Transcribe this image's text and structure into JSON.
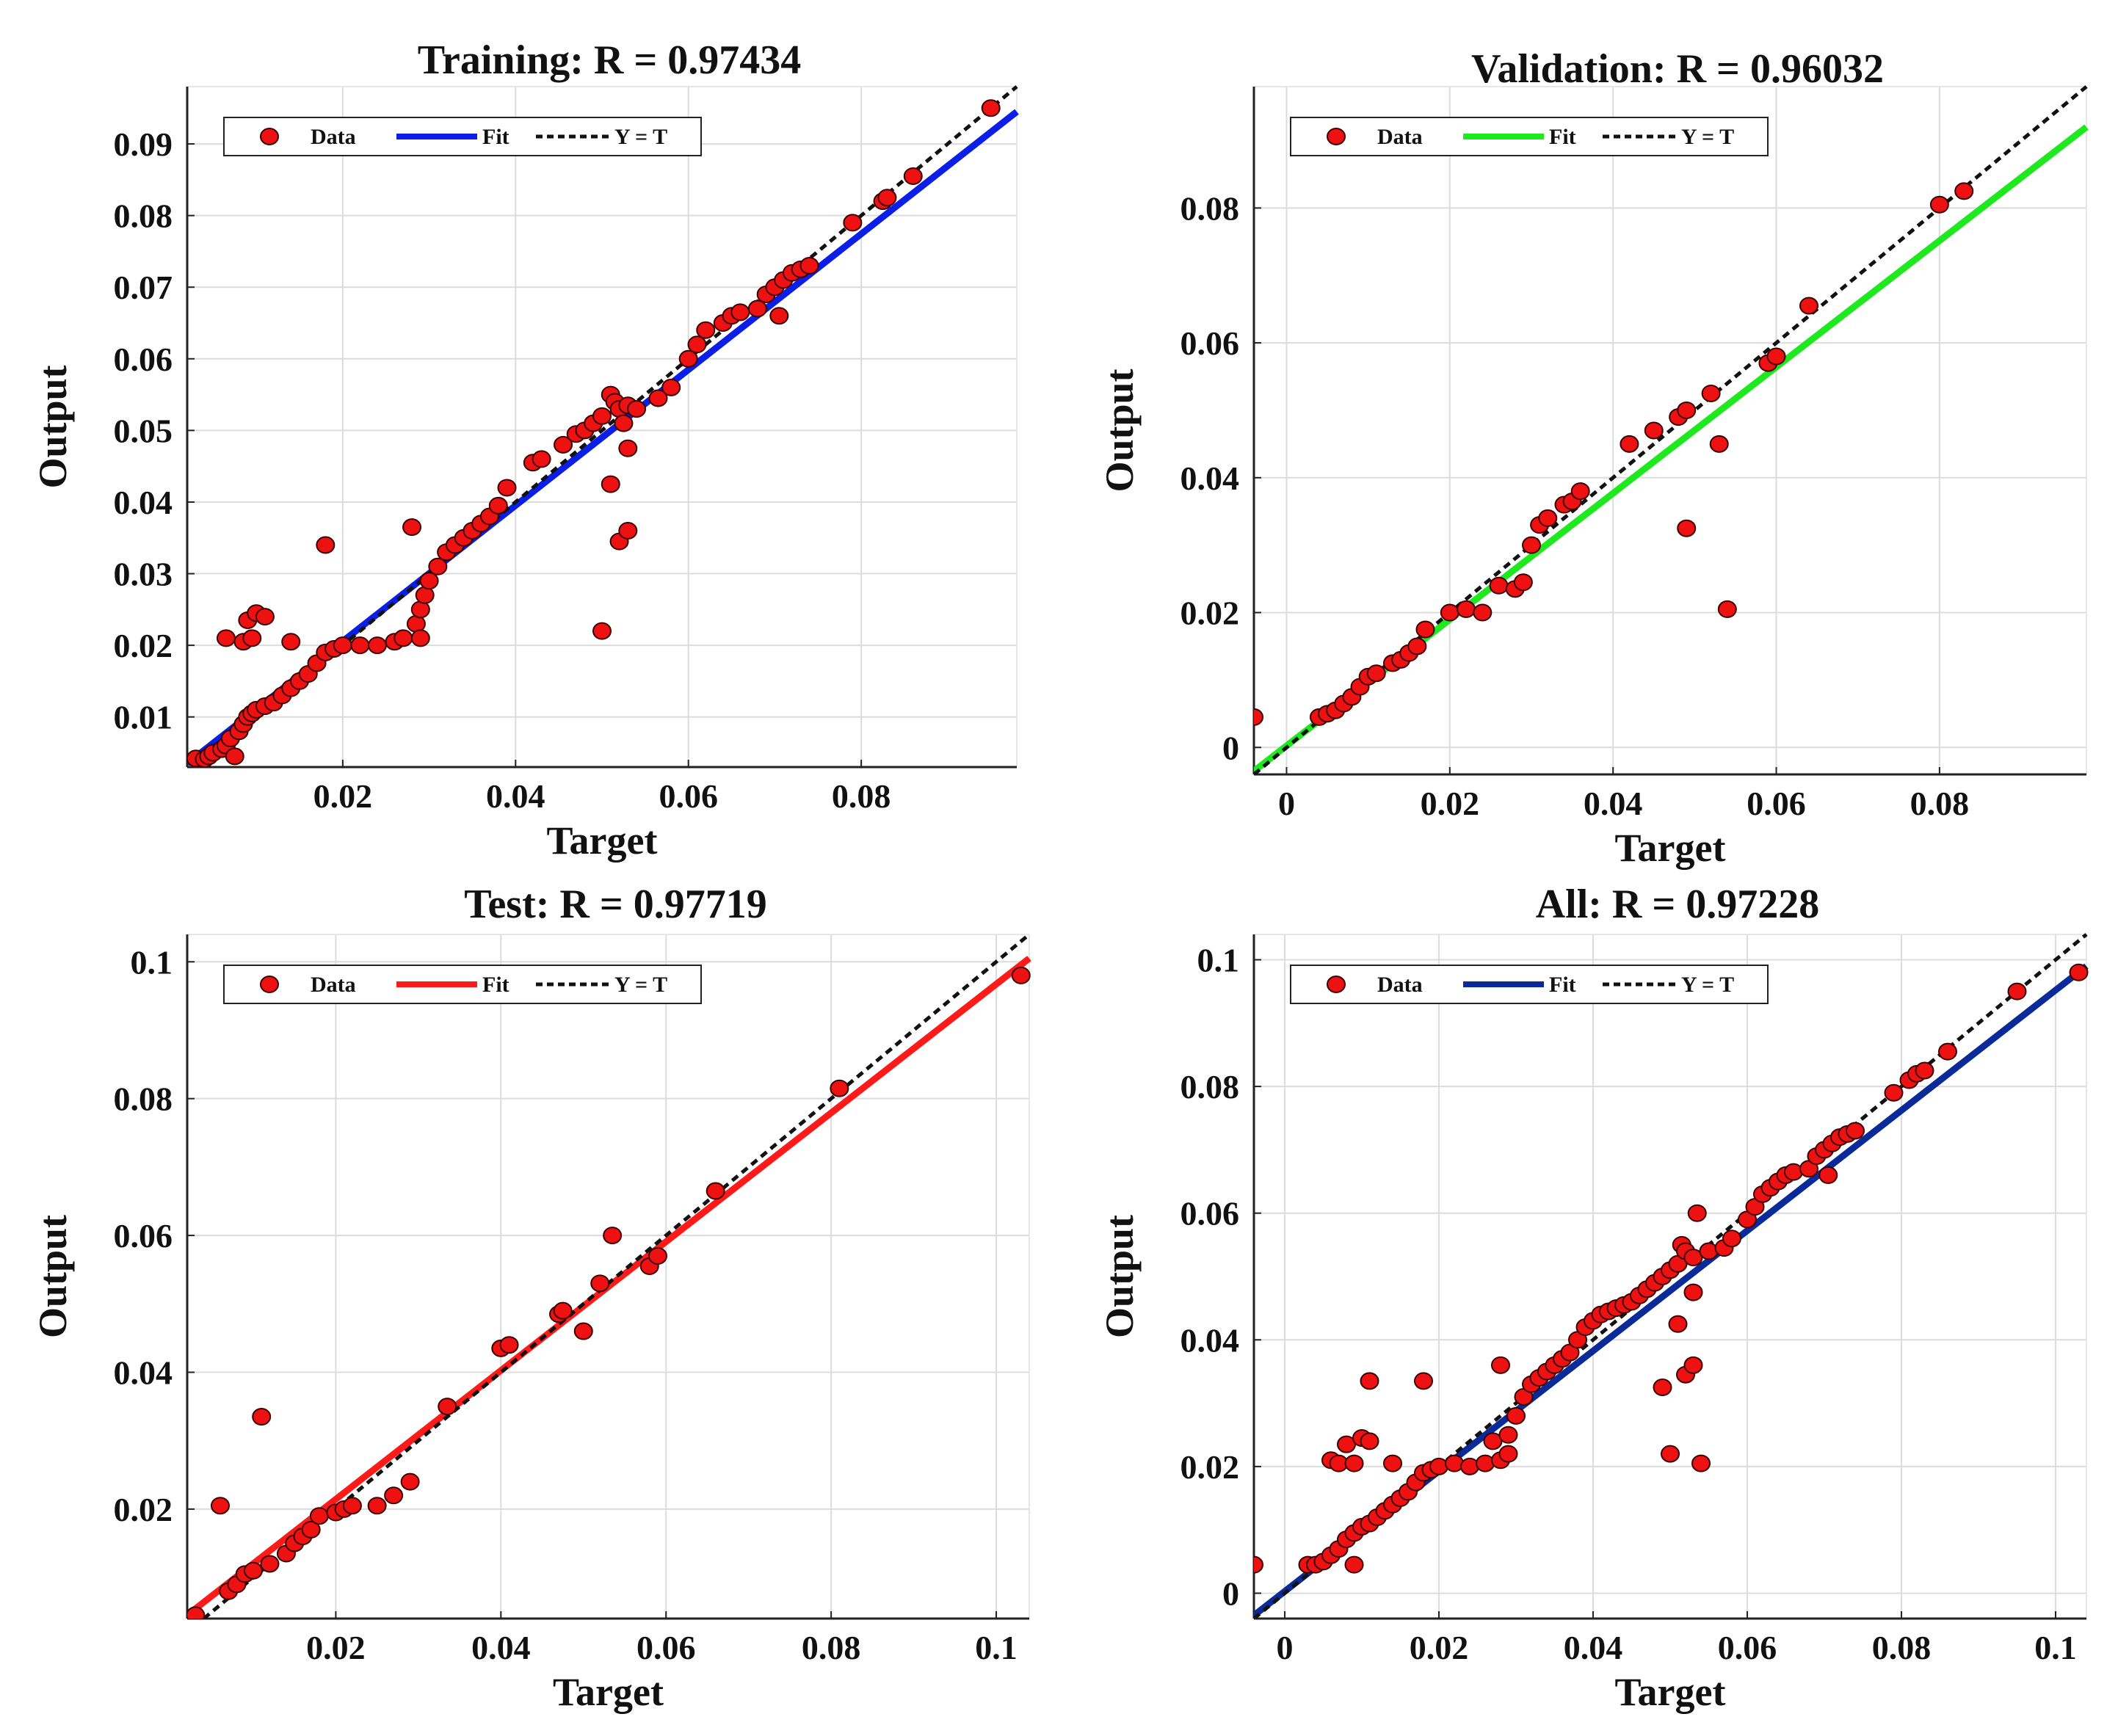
{
  "chart_data": [
    {
      "type": "scatter",
      "title": "Training: R = 0.97434",
      "xlabel": "Target",
      "ylabel": "Output",
      "xlim": [
        0.002,
        0.098
      ],
      "ylim": [
        0.003,
        0.098
      ],
      "xticks": [
        0.02,
        0.04,
        0.06,
        0.08
      ],
      "xtick_labels": [
        "0.02",
        "0.04",
        "0.06",
        "0.08"
      ],
      "yticks": [
        0.01,
        0.02,
        0.03,
        0.04,
        0.05,
        0.06,
        0.07,
        0.08,
        0.09
      ],
      "ytick_labels": [
        "0.01",
        "0.02",
        "0.03",
        "0.04",
        "0.05",
        "0.06",
        "0.07",
        "0.08",
        "0.09"
      ],
      "fit": {
        "color": "#0b1ee8",
        "x": [
          0.002,
          0.098
        ],
        "y": [
          0.0035,
          0.0945
        ]
      },
      "legend": {
        "data": "Data",
        "fit": "Fit",
        "ref": "Y = T"
      },
      "points": [
        [
          0.003,
          0.0042
        ],
        [
          0.004,
          0.0041
        ],
        [
          0.0045,
          0.0045
        ],
        [
          0.005,
          0.005
        ],
        [
          0.006,
          0.0055
        ],
        [
          0.0065,
          0.006
        ],
        [
          0.007,
          0.007
        ],
        [
          0.0075,
          0.0045
        ],
        [
          0.008,
          0.008
        ],
        [
          0.0085,
          0.009
        ],
        [
          0.009,
          0.01
        ],
        [
          0.0095,
          0.0105
        ],
        [
          0.01,
          0.011
        ],
        [
          0.011,
          0.0115
        ],
        [
          0.012,
          0.012
        ],
        [
          0.013,
          0.013
        ],
        [
          0.014,
          0.014
        ],
        [
          0.015,
          0.015
        ],
        [
          0.016,
          0.016
        ],
        [
          0.017,
          0.0175
        ],
        [
          0.018,
          0.019
        ],
        [
          0.019,
          0.0195
        ],
        [
          0.02,
          0.02
        ],
        [
          0.022,
          0.02
        ],
        [
          0.024,
          0.02
        ],
        [
          0.026,
          0.0205
        ],
        [
          0.027,
          0.021
        ],
        [
          0.0285,
          0.023
        ],
        [
          0.029,
          0.025
        ],
        [
          0.0295,
          0.027
        ],
        [
          0.03,
          0.029
        ],
        [
          0.031,
          0.031
        ],
        [
          0.032,
          0.033
        ],
        [
          0.033,
          0.034
        ],
        [
          0.034,
          0.035
        ],
        [
          0.035,
          0.036
        ],
        [
          0.036,
          0.037
        ],
        [
          0.037,
          0.038
        ],
        [
          0.038,
          0.0395
        ],
        [
          0.039,
          0.042
        ],
        [
          0.042,
          0.0455
        ],
        [
          0.043,
          0.046
        ],
        [
          0.0455,
          0.048
        ],
        [
          0.047,
          0.0495
        ],
        [
          0.048,
          0.05
        ],
        [
          0.049,
          0.051
        ],
        [
          0.05,
          0.052
        ],
        [
          0.051,
          0.055
        ],
        [
          0.0515,
          0.054
        ],
        [
          0.052,
          0.053
        ],
        [
          0.0525,
          0.051
        ],
        [
          0.053,
          0.0535
        ],
        [
          0.054,
          0.053
        ],
        [
          0.0565,
          0.0545
        ],
        [
          0.058,
          0.056
        ],
        [
          0.06,
          0.06
        ],
        [
          0.061,
          0.062
        ],
        [
          0.062,
          0.064
        ],
        [
          0.064,
          0.065
        ],
        [
          0.065,
          0.066
        ],
        [
          0.066,
          0.0665
        ],
        [
          0.068,
          0.067
        ],
        [
          0.069,
          0.069
        ],
        [
          0.07,
          0.07
        ],
        [
          0.071,
          0.071
        ],
        [
          0.072,
          0.072
        ],
        [
          0.073,
          0.0725
        ],
        [
          0.074,
          0.073
        ],
        [
          0.079,
          0.079
        ],
        [
          0.0825,
          0.082
        ],
        [
          0.083,
          0.0825
        ],
        [
          0.086,
          0.0855
        ],
        [
          0.095,
          0.095
        ],
        [
          0.0065,
          0.021
        ],
        [
          0.0085,
          0.0205
        ],
        [
          0.009,
          0.0235
        ],
        [
          0.0095,
          0.021
        ],
        [
          0.01,
          0.0245
        ],
        [
          0.011,
          0.024
        ],
        [
          0.014,
          0.0205
        ],
        [
          0.018,
          0.034
        ],
        [
          0.028,
          0.0365
        ],
        [
          0.029,
          0.021
        ],
        [
          0.05,
          0.022
        ],
        [
          0.051,
          0.0425
        ],
        [
          0.052,
          0.0345
        ],
        [
          0.053,
          0.036
        ],
        [
          0.053,
          0.0475
        ],
        [
          0.0705,
          0.066
        ]
      ]
    },
    {
      "type": "scatter",
      "title": "Validation: R = 0.96032",
      "xlabel": "Target",
      "ylabel": "Output",
      "xlim": [
        -0.004,
        0.098
      ],
      "ylim": [
        -0.004,
        0.098
      ],
      "xticks": [
        0,
        0.02,
        0.04,
        0.06,
        0.08
      ],
      "xtick_labels": [
        "0",
        "0.02",
        "0.04",
        "0.06",
        "0.08"
      ],
      "yticks": [
        0,
        0.02,
        0.04,
        0.06,
        0.08
      ],
      "ytick_labels": [
        "0",
        "0.02",
        "0.04",
        "0.06",
        "0.08"
      ],
      "fit": {
        "color": "#1ee81e",
        "x": [
          -0.004,
          0.098
        ],
        "y": [
          -0.0035,
          0.092
        ]
      },
      "legend": {
        "data": "Data",
        "fit": "Fit",
        "ref": "Y = T"
      },
      "points": [
        [
          -0.004,
          0.0045
        ],
        [
          0.004,
          0.0045
        ],
        [
          0.005,
          0.005
        ],
        [
          0.006,
          0.0055
        ],
        [
          0.007,
          0.0065
        ],
        [
          0.008,
          0.0075
        ],
        [
          0.009,
          0.009
        ],
        [
          0.01,
          0.0105
        ],
        [
          0.011,
          0.011
        ],
        [
          0.013,
          0.0125
        ],
        [
          0.014,
          0.013
        ],
        [
          0.015,
          0.014
        ],
        [
          0.016,
          0.015
        ],
        [
          0.017,
          0.0175
        ],
        [
          0.02,
          0.02
        ],
        [
          0.022,
          0.0205
        ],
        [
          0.024,
          0.02
        ],
        [
          0.026,
          0.024
        ],
        [
          0.028,
          0.0235
        ],
        [
          0.029,
          0.0245
        ],
        [
          0.03,
          0.03
        ],
        [
          0.031,
          0.033
        ],
        [
          0.032,
          0.034
        ],
        [
          0.034,
          0.036
        ],
        [
          0.035,
          0.0365
        ],
        [
          0.036,
          0.038
        ],
        [
          0.042,
          0.045
        ],
        [
          0.045,
          0.047
        ],
        [
          0.048,
          0.049
        ],
        [
          0.049,
          0.05
        ],
        [
          0.049,
          0.0325
        ],
        [
          0.052,
          0.0525
        ],
        [
          0.053,
          0.045
        ],
        [
          0.054,
          0.0205
        ],
        [
          0.059,
          0.057
        ],
        [
          0.06,
          0.058
        ],
        [
          0.064,
          0.0655
        ],
        [
          0.08,
          0.0805
        ],
        [
          0.083,
          0.0825
        ]
      ]
    },
    {
      "type": "scatter",
      "title": "Test: R = 0.97719",
      "xlabel": "Target",
      "ylabel": "Output",
      "xlim": [
        0.002,
        0.104
      ],
      "ylim": [
        0.004,
        0.104
      ],
      "xticks": [
        0.02,
        0.04,
        0.06,
        0.08,
        0.1
      ],
      "xtick_labels": [
        "0.02",
        "0.04",
        "0.06",
        "0.08",
        "0.1"
      ],
      "yticks": [
        0.02,
        0.04,
        0.06,
        0.08,
        0.1
      ],
      "ytick_labels": [
        "0.02",
        "0.04",
        "0.06",
        "0.08",
        "0.1"
      ],
      "fit": {
        "color": "#ff1a1a",
        "x": [
          0.002,
          0.104
        ],
        "y": [
          0.0045,
          0.1005
        ]
      },
      "legend": {
        "data": "Data",
        "fit": "Fit",
        "ref": "Y = T"
      },
      "points": [
        [
          0.003,
          0.0045
        ],
        [
          0.006,
          0.0205
        ],
        [
          0.007,
          0.008
        ],
        [
          0.008,
          0.009
        ],
        [
          0.009,
          0.0105
        ],
        [
          0.01,
          0.011
        ],
        [
          0.011,
          0.0335
        ],
        [
          0.012,
          0.012
        ],
        [
          0.014,
          0.0135
        ],
        [
          0.015,
          0.015
        ],
        [
          0.016,
          0.016
        ],
        [
          0.017,
          0.017
        ],
        [
          0.018,
          0.019
        ],
        [
          0.02,
          0.0195
        ],
        [
          0.021,
          0.02
        ],
        [
          0.022,
          0.0205
        ],
        [
          0.025,
          0.0205
        ],
        [
          0.027,
          0.022
        ],
        [
          0.029,
          0.024
        ],
        [
          0.0335,
          0.035
        ],
        [
          0.04,
          0.0435
        ],
        [
          0.041,
          0.044
        ],
        [
          0.047,
          0.0485
        ],
        [
          0.0475,
          0.049
        ],
        [
          0.05,
          0.046
        ],
        [
          0.052,
          0.053
        ],
        [
          0.0535,
          0.06
        ],
        [
          0.058,
          0.0555
        ],
        [
          0.059,
          0.057
        ],
        [
          0.066,
          0.0665
        ],
        [
          0.081,
          0.0815
        ],
        [
          0.103,
          0.098
        ]
      ]
    },
    {
      "type": "scatter",
      "title": "All: R = 0.97228",
      "xlabel": "Target",
      "ylabel": "Output",
      "xlim": [
        -0.004,
        0.104
      ],
      "ylim": [
        -0.004,
        0.104
      ],
      "xticks": [
        0,
        0.02,
        0.04,
        0.06,
        0.08,
        0.1
      ],
      "xtick_labels": [
        "0",
        "0.02",
        "0.04",
        "0.06",
        "0.08",
        "0.1"
      ],
      "yticks": [
        0,
        0.02,
        0.04,
        0.06,
        0.08,
        0.1
      ],
      "ytick_labels": [
        "0",
        "0.02",
        "0.04",
        "0.06",
        "0.08",
        "0.1"
      ],
      "fit": {
        "color": "#0b2a9a",
        "x": [
          -0.004,
          0.104
        ],
        "y": [
          -0.0035,
          0.099
        ]
      },
      "legend": {
        "data": "Data",
        "fit": "Fit",
        "ref": "Y = T"
      },
      "points": [
        [
          -0.004,
          0.0045
        ],
        [
          0.003,
          0.0045
        ],
        [
          0.004,
          0.0045
        ],
        [
          0.005,
          0.005
        ],
        [
          0.006,
          0.006
        ],
        [
          0.007,
          0.007
        ],
        [
          0.008,
          0.0085
        ],
        [
          0.009,
          0.0045
        ],
        [
          0.009,
          0.0095
        ],
        [
          0.01,
          0.0105
        ],
        [
          0.011,
          0.011
        ],
        [
          0.012,
          0.012
        ],
        [
          0.013,
          0.013
        ],
        [
          0.014,
          0.014
        ],
        [
          0.015,
          0.015
        ],
        [
          0.016,
          0.016
        ],
        [
          0.017,
          0.0175
        ],
        [
          0.018,
          0.019
        ],
        [
          0.019,
          0.0195
        ],
        [
          0.02,
          0.02
        ],
        [
          0.022,
          0.0205
        ],
        [
          0.024,
          0.02
        ],
        [
          0.026,
          0.0205
        ],
        [
          0.027,
          0.024
        ],
        [
          0.028,
          0.021
        ],
        [
          0.029,
          0.022
        ],
        [
          0.029,
          0.025
        ],
        [
          0.03,
          0.028
        ],
        [
          0.031,
          0.031
        ],
        [
          0.032,
          0.033
        ],
        [
          0.033,
          0.034
        ],
        [
          0.034,
          0.035
        ],
        [
          0.035,
          0.036
        ],
        [
          0.036,
          0.037
        ],
        [
          0.037,
          0.038
        ],
        [
          0.038,
          0.04
        ],
        [
          0.039,
          0.042
        ],
        [
          0.04,
          0.043
        ],
        [
          0.041,
          0.044
        ],
        [
          0.042,
          0.0445
        ],
        [
          0.043,
          0.045
        ],
        [
          0.044,
          0.0455
        ],
        [
          0.045,
          0.046
        ],
        [
          0.046,
          0.047
        ],
        [
          0.047,
          0.048
        ],
        [
          0.048,
          0.049
        ],
        [
          0.049,
          0.05
        ],
        [
          0.05,
          0.051
        ],
        [
          0.051,
          0.052
        ],
        [
          0.0515,
          0.055
        ],
        [
          0.052,
          0.054
        ],
        [
          0.053,
          0.053
        ],
        [
          0.0535,
          0.06
        ],
        [
          0.055,
          0.054
        ],
        [
          0.057,
          0.0545
        ],
        [
          0.058,
          0.056
        ],
        [
          0.06,
          0.059
        ],
        [
          0.061,
          0.061
        ],
        [
          0.062,
          0.063
        ],
        [
          0.063,
          0.064
        ],
        [
          0.064,
          0.065
        ],
        [
          0.065,
          0.066
        ],
        [
          0.066,
          0.0665
        ],
        [
          0.068,
          0.067
        ],
        [
          0.069,
          0.069
        ],
        [
          0.07,
          0.07
        ],
        [
          0.071,
          0.071
        ],
        [
          0.072,
          0.072
        ],
        [
          0.073,
          0.0725
        ],
        [
          0.074,
          0.073
        ],
        [
          0.079,
          0.079
        ],
        [
          0.081,
          0.081
        ],
        [
          0.082,
          0.082
        ],
        [
          0.083,
          0.0825
        ],
        [
          0.086,
          0.0855
        ],
        [
          0.095,
          0.095
        ],
        [
          0.103,
          0.098
        ],
        [
          0.006,
          0.021
        ],
        [
          0.007,
          0.0205
        ],
        [
          0.008,
          0.0235
        ],
        [
          0.009,
          0.0205
        ],
        [
          0.01,
          0.0245
        ],
        [
          0.011,
          0.024
        ],
        [
          0.011,
          0.0335
        ],
        [
          0.014,
          0.0205
        ],
        [
          0.018,
          0.0335
        ],
        [
          0.028,
          0.036
        ],
        [
          0.049,
          0.0325
        ],
        [
          0.05,
          0.022
        ],
        [
          0.051,
          0.0425
        ],
        [
          0.052,
          0.0345
        ],
        [
          0.053,
          0.036
        ],
        [
          0.053,
          0.0475
        ],
        [
          0.054,
          0.0205
        ],
        [
          0.0705,
          0.066
        ]
      ]
    }
  ]
}
